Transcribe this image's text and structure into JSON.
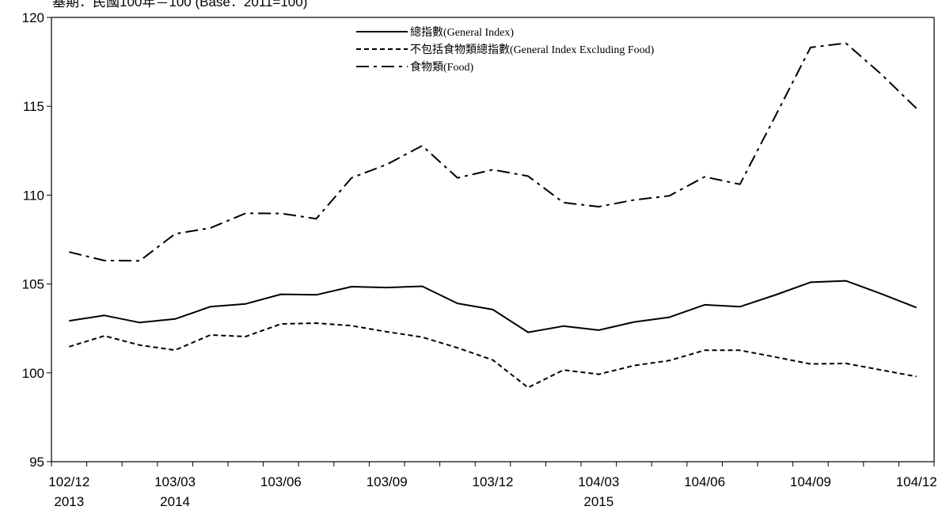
{
  "chart_data": {
    "type": "line",
    "subtitle": "基期：民國100年＝100 (Base：2011=100)",
    "x": [
      "102/12",
      "103/01",
      "103/02",
      "103/03",
      "103/04",
      "103/05",
      "103/06",
      "103/07",
      "103/08",
      "103/09",
      "103/10",
      "103/11",
      "103/12",
      "104/01",
      "104/02",
      "104/03",
      "104/04",
      "104/05",
      "104/06",
      "104/07",
      "104/08",
      "104/09",
      "104/10",
      "104/11",
      "104/12"
    ],
    "x_tick_labels": [
      {
        "index": 0,
        "label": "102/12",
        "year": "2013"
      },
      {
        "index": 3,
        "label": "103/03",
        "year": "2014"
      },
      {
        "index": 6,
        "label": "103/06",
        "year": ""
      },
      {
        "index": 9,
        "label": "103/09",
        "year": ""
      },
      {
        "index": 12,
        "label": "103/12",
        "year": ""
      },
      {
        "index": 15,
        "label": "104/03",
        "year": "2015"
      },
      {
        "index": 18,
        "label": "104/06",
        "year": ""
      },
      {
        "index": 21,
        "label": "104/09",
        "year": ""
      },
      {
        "index": 24,
        "label": "104/12",
        "year": ""
      }
    ],
    "ylim": [
      95,
      120
    ],
    "yticks": [
      95,
      100,
      105,
      110,
      115,
      120
    ],
    "grid": false,
    "legend_position": "top-center",
    "series": [
      {
        "name": "總指數(General Index)",
        "style": "solid",
        "color": "#000000",
        "values": [
          102.93,
          103.23,
          102.83,
          103.03,
          103.72,
          103.88,
          104.42,
          104.39,
          104.85,
          104.8,
          104.87,
          103.91,
          103.56,
          102.28,
          102.63,
          102.4,
          102.86,
          103.13,
          103.83,
          103.72,
          104.38,
          105.1,
          105.18,
          104.45,
          103.67
        ]
      },
      {
        "name": "不包括食物類總指數(General Index Excluding Food)",
        "style": "dashed",
        "color": "#000000",
        "values": [
          101.47,
          102.08,
          101.56,
          101.28,
          102.13,
          102.04,
          102.75,
          102.8,
          102.65,
          102.31,
          102.01,
          101.41,
          100.72,
          99.17,
          100.16,
          99.92,
          100.41,
          100.69,
          101.27,
          101.27,
          100.89,
          100.5,
          100.53,
          100.16,
          99.79
        ]
      },
      {
        "name": "食物類(Food)",
        "style": "dashdot",
        "color": "#000000",
        "values": [
          106.8,
          106.32,
          106.3,
          107.82,
          108.15,
          108.98,
          108.97,
          108.67,
          110.97,
          111.73,
          112.78,
          110.97,
          111.43,
          111.07,
          109.58,
          109.35,
          109.73,
          109.96,
          111.03,
          110.61,
          114.44,
          118.31,
          118.55,
          116.81,
          114.88
        ]
      }
    ]
  }
}
